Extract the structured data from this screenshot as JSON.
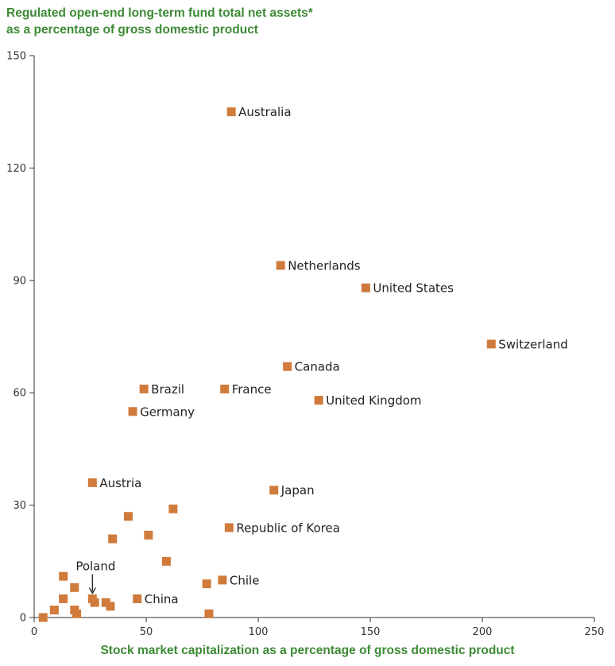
{
  "chart_data": {
    "type": "scatter",
    "title_line1": "Regulated open-end long-term fund total net assets*",
    "title_line2": "as a percentage of gross domestic product",
    "xlabel": "Stock market capitalization as a percentage of gross domestic product",
    "xlim": [
      0,
      250
    ],
    "ylim": [
      0,
      150
    ],
    "xticks": [
      "0",
      "50",
      "100",
      "150",
      "200",
      "250"
    ],
    "yticks": [
      "0",
      "30",
      "60",
      "90",
      "120",
      "150"
    ],
    "marker_color": "#d07a3c",
    "axis_color": "#333333",
    "title_color": "#3d8a35",
    "points": [
      {
        "x": 88,
        "y": 135,
        "label": "Australia"
      },
      {
        "x": 110,
        "y": 94,
        "label": "Netherlands"
      },
      {
        "x": 148,
        "y": 88,
        "label": "United States"
      },
      {
        "x": 204,
        "y": 73,
        "label": "Switzerland"
      },
      {
        "x": 113,
        "y": 67,
        "label": "Canada"
      },
      {
        "x": 49,
        "y": 61,
        "label": "Brazil"
      },
      {
        "x": 85,
        "y": 61,
        "label": "France"
      },
      {
        "x": 127,
        "y": 58,
        "label": "United Kingdom"
      },
      {
        "x": 44,
        "y": 55,
        "label": "Germany"
      },
      {
        "x": 26,
        "y": 36,
        "label": "Austria"
      },
      {
        "x": 107,
        "y": 34,
        "label": "Japan"
      },
      {
        "x": 62,
        "y": 29,
        "label": ""
      },
      {
        "x": 42,
        "y": 27,
        "label": ""
      },
      {
        "x": 87,
        "y": 24,
        "label": "Republic of Korea"
      },
      {
        "x": 51,
        "y": 22,
        "label": ""
      },
      {
        "x": 35,
        "y": 21,
        "label": ""
      },
      {
        "x": 59,
        "y": 15,
        "label": ""
      },
      {
        "x": 13,
        "y": 11,
        "label": ""
      },
      {
        "x": 84,
        "y": 10,
        "label": "Chile"
      },
      {
        "x": 77,
        "y": 9,
        "label": ""
      },
      {
        "x": 18,
        "y": 8,
        "label": ""
      },
      {
        "x": 46,
        "y": 5,
        "label": "China"
      },
      {
        "x": 13,
        "y": 5,
        "label": ""
      },
      {
        "x": 26,
        "y": 5,
        "label": ""
      },
      {
        "x": 27,
        "y": 4,
        "label": ""
      },
      {
        "x": 32,
        "y": 4,
        "label": ""
      },
      {
        "x": 34,
        "y": 3,
        "label": ""
      },
      {
        "x": 9,
        "y": 2,
        "label": ""
      },
      {
        "x": 18,
        "y": 2,
        "label": ""
      },
      {
        "x": 19,
        "y": 1,
        "label": ""
      },
      {
        "x": 78,
        "y": 1,
        "label": ""
      },
      {
        "x": 4,
        "y": 0,
        "label": ""
      }
    ],
    "annotation": {
      "label": "Poland",
      "x": 26,
      "y": 5
    }
  }
}
